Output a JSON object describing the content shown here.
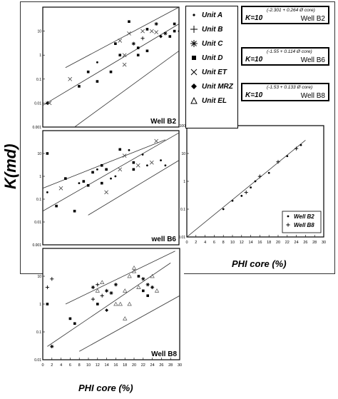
{
  "figure": {
    "y_axis_label": "K(md)",
    "x_axis_label": "PHI core (%)"
  },
  "legend": {
    "items": [
      {
        "symbol": "dot",
        "label": "Unit A"
      },
      {
        "symbol": "plus",
        "label": "Unit B"
      },
      {
        "symbol": "asterisk",
        "label": "Unit C"
      },
      {
        "symbol": "square",
        "label": "Unit D"
      },
      {
        "symbol": "cross",
        "label": "Unit ET"
      },
      {
        "symbol": "diamond",
        "label": "Unit MRZ"
      },
      {
        "symbol": "triangle",
        "label": "Unit EL"
      }
    ]
  },
  "equations": [
    {
      "base": "K=10",
      "exponent": "(-2.301 + 0.264 Ø core)",
      "well": "Well B2"
    },
    {
      "base": "K=10",
      "exponent": "(-1.55 + 0.114 Ø core)",
      "well": "Well B6"
    },
    {
      "base": "K=10",
      "exponent": "(-1.53 + 0.133 Ø core)",
      "well": "Well B8"
    }
  ],
  "comparison_legend": {
    "items": [
      {
        "symbol": "dot",
        "label": "Well B2"
      },
      {
        "symbol": "plus",
        "label": "Well B8"
      }
    ]
  },
  "chart_data": [
    {
      "type": "scatter",
      "title": "Well B2",
      "xlabel": "",
      "ylabel": "K(md)",
      "xlim": [
        0,
        30
      ],
      "ylim": [
        0.001,
        100
      ],
      "yscale": "log",
      "y_ticks": [
        "0.001",
        "0.01",
        "0.1",
        "1",
        "10"
      ],
      "x_ticks": [],
      "lines": [
        {
          "x": [
            5,
            30
          ],
          "y": [
            0.3,
            100
          ]
        },
        {
          "x": [
            0,
            30
          ],
          "y": [
            0.008,
            20
          ]
        },
        {
          "x": [
            7,
            30
          ],
          "y": [
            0.001,
            1.5
          ]
        }
      ],
      "points": [
        {
          "x": 1,
          "y": 0.01,
          "m": "asterisk"
        },
        {
          "x": 1.5,
          "y": 0.01,
          "m": "cross"
        },
        {
          "x": 6,
          "y": 0.1,
          "m": "cross"
        },
        {
          "x": 8,
          "y": 0.05,
          "m": "square"
        },
        {
          "x": 10,
          "y": 0.2,
          "m": "square"
        },
        {
          "x": 12,
          "y": 0.5,
          "m": "dot"
        },
        {
          "x": 12,
          "y": 0.08,
          "m": "square"
        },
        {
          "x": 15,
          "y": 0.2,
          "m": "square"
        },
        {
          "x": 16,
          "y": 3,
          "m": "square"
        },
        {
          "x": 17,
          "y": 1,
          "m": "square"
        },
        {
          "x": 17,
          "y": 4,
          "m": "cross"
        },
        {
          "x": 18,
          "y": 1,
          "m": "cross"
        },
        {
          "x": 18,
          "y": 0.4,
          "m": "cross"
        },
        {
          "x": 19,
          "y": 25,
          "m": "square"
        },
        {
          "x": 19,
          "y": 8,
          "m": "cross"
        },
        {
          "x": 20,
          "y": 3,
          "m": "asterisk"
        },
        {
          "x": 21,
          "y": 2,
          "m": "square"
        },
        {
          "x": 21,
          "y": 1,
          "m": "square"
        },
        {
          "x": 22,
          "y": 5,
          "m": "plus"
        },
        {
          "x": 22,
          "y": 10,
          "m": "cross"
        },
        {
          "x": 23,
          "y": 12,
          "m": "square"
        },
        {
          "x": 23,
          "y": 1.5,
          "m": "square"
        },
        {
          "x": 24,
          "y": 10,
          "m": "cross"
        },
        {
          "x": 25,
          "y": 20,
          "m": "asterisk"
        },
        {
          "x": 25,
          "y": 9,
          "m": "cross"
        },
        {
          "x": 26,
          "y": 6,
          "m": "diamond"
        },
        {
          "x": 27,
          "y": 8,
          "m": "asterisk"
        },
        {
          "x": 28,
          "y": 6,
          "m": "square"
        },
        {
          "x": 29,
          "y": 10,
          "m": "square"
        },
        {
          "x": 29,
          "y": 20,
          "m": "square"
        },
        {
          "x": 30,
          "y": 10,
          "m": "dot"
        }
      ]
    },
    {
      "type": "scatter",
      "title": "well B6",
      "xlabel": "",
      "ylabel": "",
      "xlim": [
        0,
        30
      ],
      "ylim": [
        0.001,
        100
      ],
      "yscale": "log",
      "y_ticks": [
        "0.001",
        "0.01",
        "0.1",
        "1",
        "10"
      ],
      "x_ticks": [],
      "lines": [
        {
          "x": [
            0,
            27
          ],
          "y": [
            0.3,
            40
          ]
        },
        {
          "x": [
            0,
            30
          ],
          "y": [
            0.03,
            80
          ]
        },
        {
          "x": [
            10,
            30
          ],
          "y": [
            0.02,
            5
          ]
        }
      ],
      "points": [
        {
          "x": 1,
          "y": 10,
          "m": "square"
        },
        {
          "x": 1,
          "y": 0.2,
          "m": "dot"
        },
        {
          "x": 3,
          "y": 0.05,
          "m": "square"
        },
        {
          "x": 4,
          "y": 0.3,
          "m": "cross"
        },
        {
          "x": 5,
          "y": 0.8,
          "m": "square"
        },
        {
          "x": 7,
          "y": 0.03,
          "m": "square"
        },
        {
          "x": 8,
          "y": 0.5,
          "m": "dot"
        },
        {
          "x": 9,
          "y": 0.6,
          "m": "square"
        },
        {
          "x": 10,
          "y": 0.4,
          "m": "square"
        },
        {
          "x": 11,
          "y": 1.5,
          "m": "square"
        },
        {
          "x": 12,
          "y": 2,
          "m": "dot"
        },
        {
          "x": 13,
          "y": 3,
          "m": "square"
        },
        {
          "x": 13,
          "y": 0.5,
          "m": "square"
        },
        {
          "x": 14,
          "y": 2,
          "m": "square"
        },
        {
          "x": 14,
          "y": 0.2,
          "m": "cross"
        },
        {
          "x": 15,
          "y": 0.8,
          "m": "dot"
        },
        {
          "x": 16,
          "y": 1,
          "m": "dot"
        },
        {
          "x": 17,
          "y": 15,
          "m": "square"
        },
        {
          "x": 17,
          "y": 2,
          "m": "cross"
        },
        {
          "x": 18,
          "y": 8,
          "m": "cross"
        },
        {
          "x": 19,
          "y": 14,
          "m": "dot"
        },
        {
          "x": 20,
          "y": 4,
          "m": "square"
        },
        {
          "x": 20,
          "y": 2,
          "m": "square"
        },
        {
          "x": 21,
          "y": 3,
          "m": "cross"
        },
        {
          "x": 22,
          "y": 9,
          "m": "dot"
        },
        {
          "x": 23,
          "y": 3,
          "m": "dot"
        },
        {
          "x": 24,
          "y": 4,
          "m": "cross"
        },
        {
          "x": 25,
          "y": 35,
          "m": "cross"
        },
        {
          "x": 26,
          "y": 5,
          "m": "dot"
        },
        {
          "x": 27,
          "y": 3,
          "m": "dot"
        }
      ]
    },
    {
      "type": "scatter",
      "title": "Well B8",
      "xlabel": "PHI core (%)",
      "ylabel": "",
      "xlim": [
        0,
        30
      ],
      "ylim": [
        0.01,
        100
      ],
      "yscale": "log",
      "y_ticks": [
        "0.01",
        "0.1",
        "1",
        "10"
      ],
      "x_ticks": [
        "0",
        "2",
        "4",
        "6",
        "8",
        "10",
        "12",
        "14",
        "16",
        "18",
        "20",
        "22",
        "24",
        "26",
        "28",
        "30"
      ],
      "lines": [
        {
          "x": [
            5,
            29
          ],
          "y": [
            1,
            80
          ]
        },
        {
          "x": [
            1,
            28
          ],
          "y": [
            0.03,
            30
          ]
        },
        {
          "x": [
            8,
            30
          ],
          "y": [
            0.02,
            2
          ]
        }
      ],
      "points": [
        {
          "x": 1,
          "y": 4,
          "m": "plus"
        },
        {
          "x": 1,
          "y": 1,
          "m": "square"
        },
        {
          "x": 2,
          "y": 8,
          "m": "plus"
        },
        {
          "x": 2,
          "y": 0.03,
          "m": "asterisk"
        },
        {
          "x": 6,
          "y": 0.3,
          "m": "square"
        },
        {
          "x": 7,
          "y": 0.2,
          "m": "square"
        },
        {
          "x": 11,
          "y": 4,
          "m": "asterisk"
        },
        {
          "x": 11,
          "y": 1.5,
          "m": "plus"
        },
        {
          "x": 12,
          "y": 1,
          "m": "square"
        },
        {
          "x": 12,
          "y": 5,
          "m": "plus"
        },
        {
          "x": 12,
          "y": 3,
          "m": "triangle"
        },
        {
          "x": 13,
          "y": 6,
          "m": "triangle"
        },
        {
          "x": 13,
          "y": 2,
          "m": "plus"
        },
        {
          "x": 14,
          "y": 3,
          "m": "asterisk"
        },
        {
          "x": 14,
          "y": 0.6,
          "m": "diamond"
        },
        {
          "x": 15,
          "y": 2.5,
          "m": "asterisk"
        },
        {
          "x": 16,
          "y": 1,
          "m": "triangle"
        },
        {
          "x": 16,
          "y": 5,
          "m": "asterisk"
        },
        {
          "x": 17,
          "y": 1,
          "m": "triangle"
        },
        {
          "x": 18,
          "y": 3,
          "m": "triangle"
        },
        {
          "x": 18,
          "y": 0.3,
          "m": "triangle"
        },
        {
          "x": 19,
          "y": 10,
          "m": "triangle"
        },
        {
          "x": 19,
          "y": 1,
          "m": "triangle"
        },
        {
          "x": 20,
          "y": 15,
          "m": "triangle"
        },
        {
          "x": 20,
          "y": 20,
          "m": "triangle"
        },
        {
          "x": 21,
          "y": 10,
          "m": "square"
        },
        {
          "x": 21,
          "y": 4,
          "m": "triangle"
        },
        {
          "x": 22,
          "y": 3,
          "m": "square"
        },
        {
          "x": 22,
          "y": 8,
          "m": "asterisk"
        },
        {
          "x": 23,
          "y": 5,
          "m": "asterisk"
        },
        {
          "x": 23,
          "y": 2,
          "m": "square"
        },
        {
          "x": 24,
          "y": 4,
          "m": "asterisk"
        },
        {
          "x": 24,
          "y": 10,
          "m": "triangle"
        },
        {
          "x": 25,
          "y": 3,
          "m": "triangle"
        }
      ]
    },
    {
      "type": "scatter",
      "title": "",
      "xlabel": "PHI core (%)",
      "ylabel": "",
      "xlim": [
        0,
        30
      ],
      "ylim": [
        0.01,
        100
      ],
      "yscale": "log",
      "y_ticks": [
        "0.01",
        "0.1",
        "1",
        "10",
        "100"
      ],
      "x_ticks": [
        "0",
        "2",
        "4",
        "6",
        "8",
        "10",
        "12",
        "14",
        "16",
        "18",
        "20",
        "22",
        "24",
        "26",
        "28",
        "30"
      ],
      "lines": [
        {
          "x": [
            0,
            26
          ],
          "y": [
            0.01,
            30
          ]
        }
      ],
      "points": [
        {
          "x": 8,
          "y": 0.1,
          "m": "dot"
        },
        {
          "x": 10,
          "y": 0.2,
          "m": "dot"
        },
        {
          "x": 12,
          "y": 0.3,
          "m": "dot"
        },
        {
          "x": 13,
          "y": 0.4,
          "m": "plus"
        },
        {
          "x": 14,
          "y": 0.6,
          "m": "dot"
        },
        {
          "x": 15,
          "y": 1,
          "m": "dot"
        },
        {
          "x": 16,
          "y": 1.5,
          "m": "plus"
        },
        {
          "x": 18,
          "y": 2,
          "m": "dot"
        },
        {
          "x": 20,
          "y": 5,
          "m": "plus"
        },
        {
          "x": 22,
          "y": 8,
          "m": "dot"
        },
        {
          "x": 24,
          "y": 15,
          "m": "plus"
        },
        {
          "x": 25,
          "y": 20,
          "m": "dot"
        }
      ]
    }
  ]
}
